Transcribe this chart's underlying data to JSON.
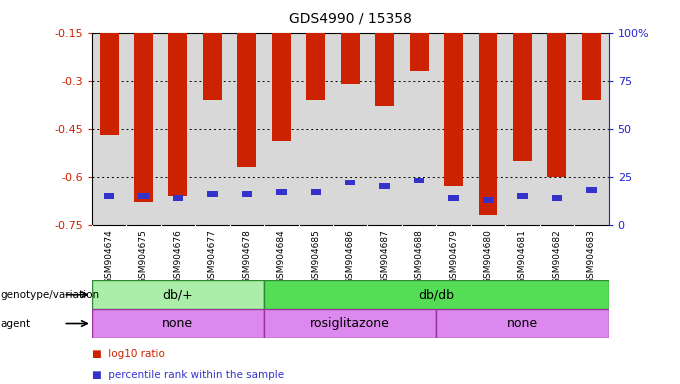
{
  "title": "GDS4990 / 15358",
  "samples": [
    "GSM904674",
    "GSM904675",
    "GSM904676",
    "GSM904677",
    "GSM904678",
    "GSM904684",
    "GSM904685",
    "GSM904686",
    "GSM904687",
    "GSM904688",
    "GSM904679",
    "GSM904680",
    "GSM904681",
    "GSM904682",
    "GSM904683"
  ],
  "log10_ratio": [
    -0.47,
    -0.68,
    -0.66,
    -0.36,
    -0.57,
    -0.49,
    -0.36,
    -0.31,
    -0.38,
    -0.27,
    -0.63,
    -0.72,
    -0.55,
    -0.6,
    -0.36
  ],
  "percentile_rank": [
    15,
    15,
    14,
    16,
    16,
    17,
    17,
    22,
    20,
    23,
    14,
    13,
    15,
    14,
    18
  ],
  "ylim_left": [
    -0.75,
    -0.15
  ],
  "ylim_right": [
    0,
    100
  ],
  "yticks_left": [
    -0.75,
    -0.6,
    -0.45,
    -0.3,
    -0.15
  ],
  "yticks_right": [
    0,
    25,
    50,
    75,
    100
  ],
  "bar_color_red": "#cc2200",
  "bar_color_blue": "#3333cc",
  "bar_width": 0.55,
  "genotype_groups": [
    {
      "label": "db/+",
      "start": 0,
      "end": 4,
      "color": "#aaeeaa"
    },
    {
      "label": "db/db",
      "start": 5,
      "end": 14,
      "color": "#55dd55"
    }
  ],
  "agent_groups": [
    {
      "label": "none",
      "start": 0,
      "end": 4,
      "color": "#dd88ee"
    },
    {
      "label": "rosiglitazone",
      "start": 5,
      "end": 9,
      "color": "#dd88ee"
    },
    {
      "label": "none",
      "start": 10,
      "end": 14,
      "color": "#dd88ee"
    }
  ],
  "genotype_label": "genotype/variation",
  "agent_label": "agent",
  "ylabel_left_color": "#cc2200",
  "ylabel_right_color": "#2222cc"
}
